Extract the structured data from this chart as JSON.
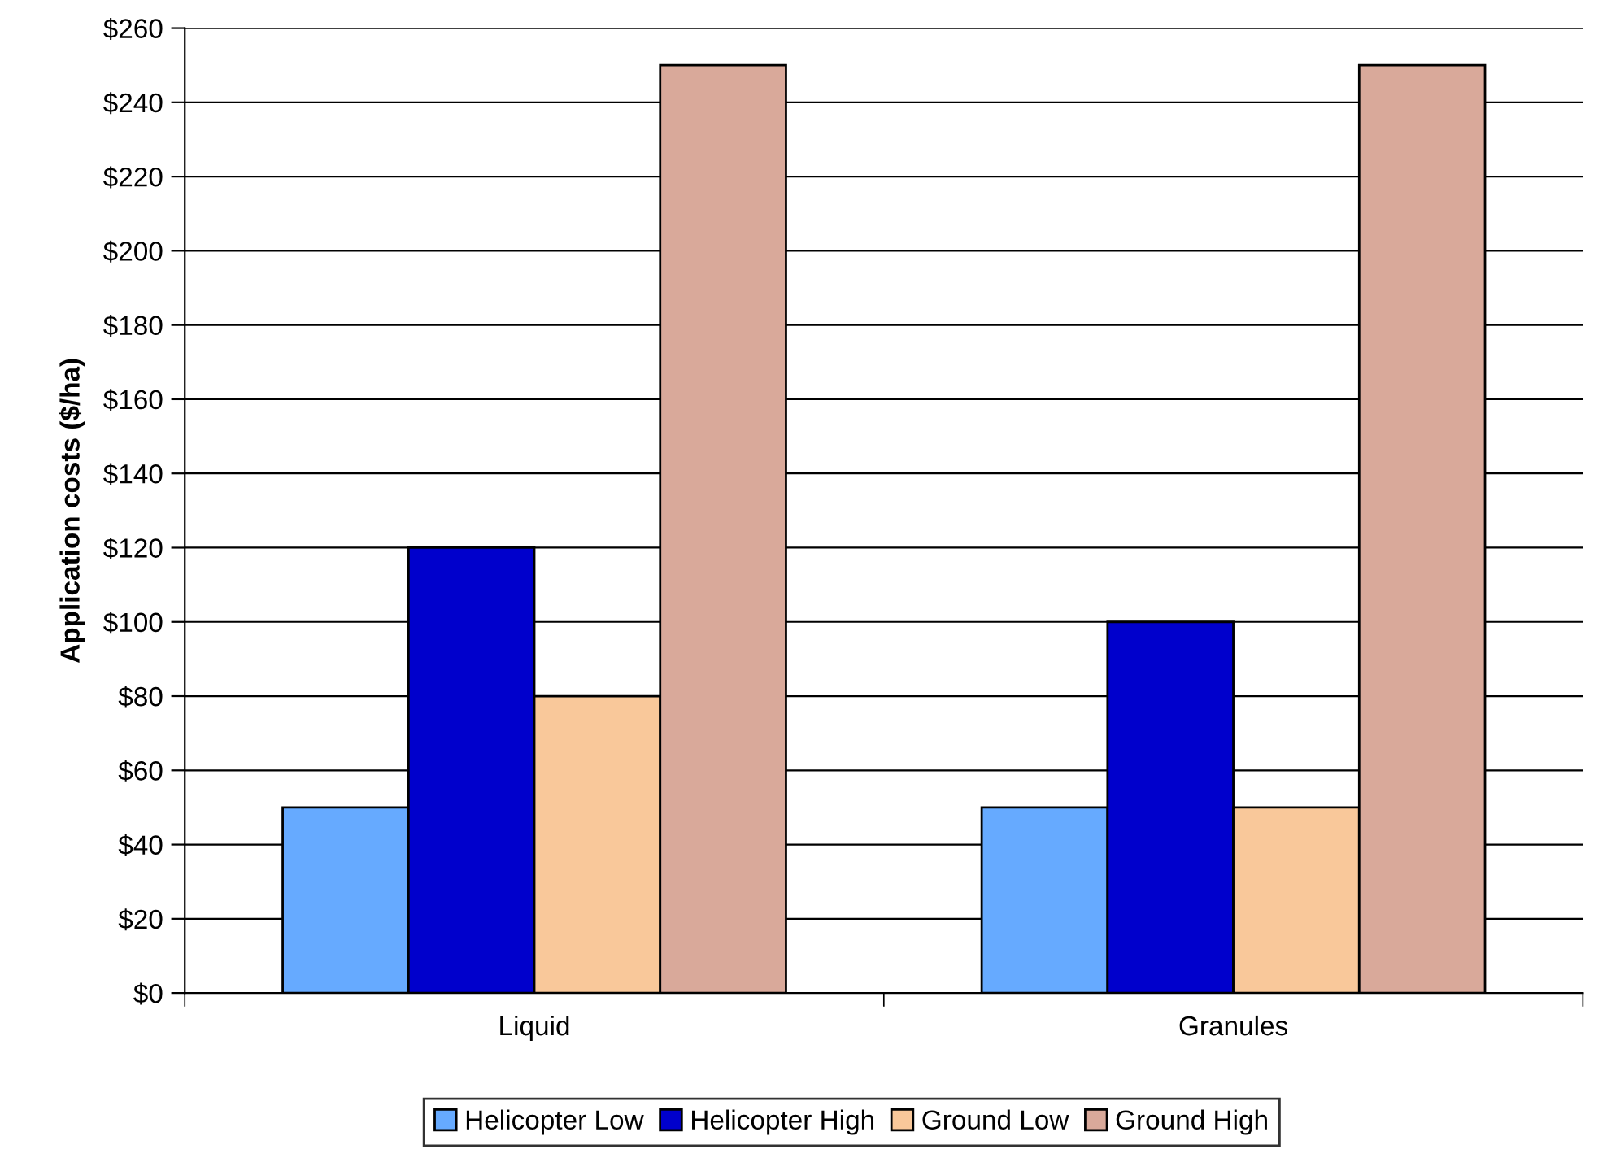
{
  "chart_data": {
    "type": "bar",
    "ylabel": "Application costs ($/ha)",
    "categories": [
      "Liquid",
      "Granules"
    ],
    "series": [
      {
        "name": "Helicopter Low",
        "color": "#66aaff",
        "values": [
          50,
          50
        ]
      },
      {
        "name": "Helicopter High",
        "color": "#0000cc",
        "values": [
          120,
          100
        ]
      },
      {
        "name": "Ground Low",
        "color": "#f9c89a",
        "values": [
          80,
          50
        ]
      },
      {
        "name": "Ground High",
        "color": "#d9a99a",
        "values": [
          250,
          250
        ]
      }
    ],
    "ylim": [
      0,
      260
    ],
    "yticks": [
      {
        "value": 0,
        "label": "$0"
      },
      {
        "value": 20,
        "label": "$20"
      },
      {
        "value": 40,
        "label": "$40"
      },
      {
        "value": 60,
        "label": "$60"
      },
      {
        "value": 80,
        "label": "$80"
      },
      {
        "value": 100,
        "label": "$100"
      },
      {
        "value": 120,
        "label": "$120"
      },
      {
        "value": 140,
        "label": "$140"
      },
      {
        "value": 160,
        "label": "$160"
      },
      {
        "value": 180,
        "label": "$180"
      },
      {
        "value": 200,
        "label": "$200"
      },
      {
        "value": 220,
        "label": "$220"
      },
      {
        "value": 240,
        "label": "$240"
      },
      {
        "value": 260,
        "label": "$260"
      }
    ],
    "grid": "y",
    "legend": "bottom"
  }
}
